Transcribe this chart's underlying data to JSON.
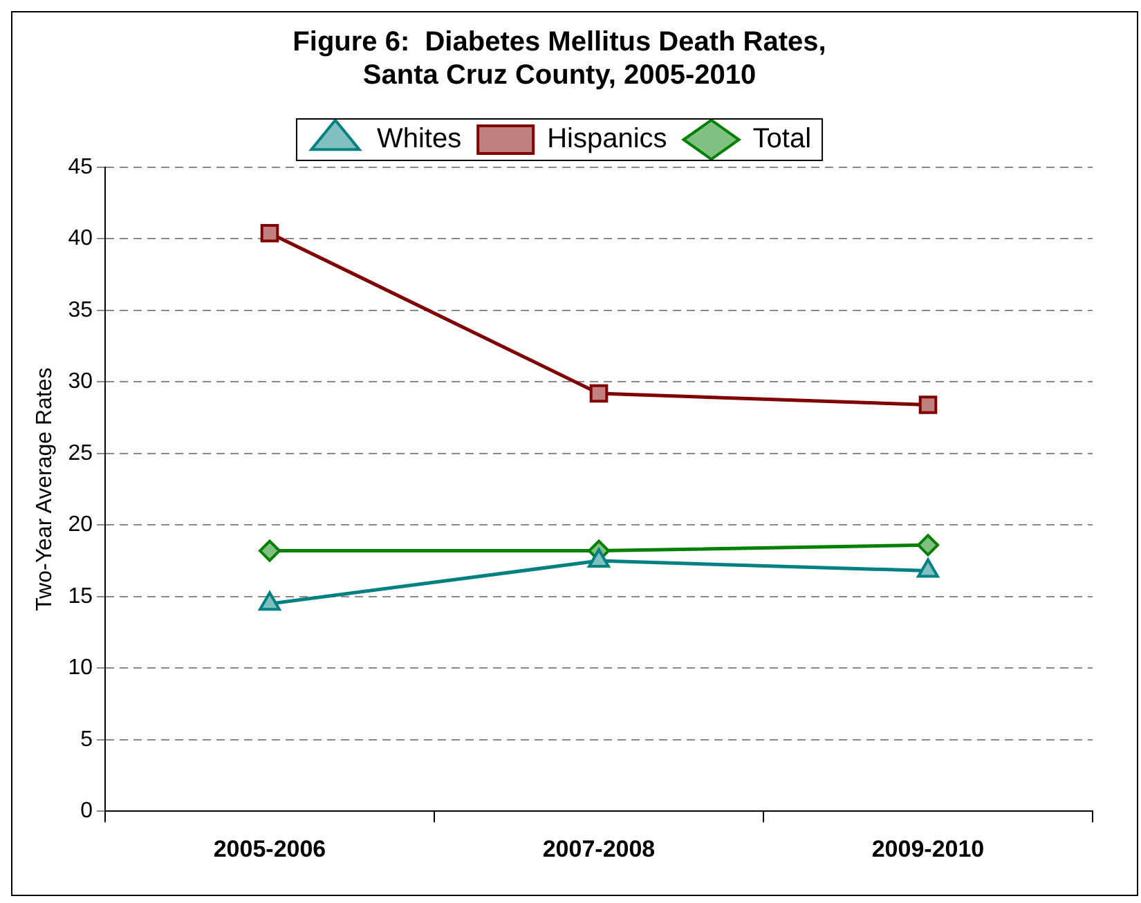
{
  "chart_data": {
    "type": "line",
    "title": "Figure 6:  Diabetes Mellitus Death Rates,\nSanta Cruz County, 2005-2010",
    "ylabel": "Two-Year Average Rates",
    "categories": [
      "2005-2006",
      "2007-2008",
      "2009-2010"
    ],
    "series": [
      {
        "name": "Whites",
        "color": "#008080",
        "marker": "triangle",
        "values": [
          14.5,
          17.5,
          16.8
        ]
      },
      {
        "name": "Hispanics",
        "color": "#800000",
        "marker": "square",
        "values": [
          40.4,
          29.2,
          28.4
        ]
      },
      {
        "name": "Total",
        "color": "#008000",
        "marker": "diamond",
        "values": [
          18.2,
          18.2,
          18.6
        ]
      }
    ],
    "ylim": [
      0,
      45
    ],
    "yticks": [
      0,
      5,
      10,
      15,
      20,
      25,
      30,
      35,
      40,
      45
    ],
    "grid": "y",
    "legend": "top",
    "line_style": "solid"
  }
}
